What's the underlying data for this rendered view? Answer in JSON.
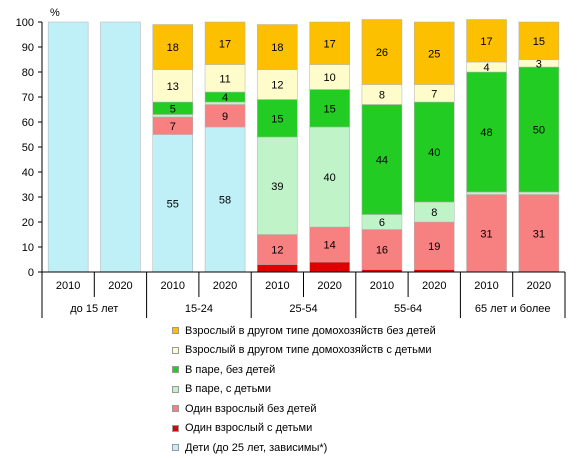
{
  "chart_data": {
    "type": "bar",
    "stacked": true,
    "unit_label": "%",
    "ylim": [
      0,
      100
    ],
    "yticks": [
      0,
      10,
      20,
      30,
      40,
      50,
      60,
      70,
      80,
      90,
      100
    ],
    "grid": false,
    "legend_position": "bottom",
    "groups": [
      {
        "label": "до 15 лет",
        "years": [
          "2010",
          "2020"
        ]
      },
      {
        "label": "15-24",
        "years": [
          "2010",
          "2020"
        ]
      },
      {
        "label": "25-54",
        "years": [
          "2010",
          "2020"
        ]
      },
      {
        "label": "55-64",
        "years": [
          "2010",
          "2020"
        ]
      },
      {
        "label": "65 лет и более",
        "years": [
          "2010",
          "2020"
        ]
      }
    ],
    "categories": [
      "до 15 лет 2010",
      "до 15 лет 2020",
      "15-24 2010",
      "15-24 2020",
      "25-54 2010",
      "25-54 2020",
      "55-64 2010",
      "55-64 2020",
      "65 лет и более 2010",
      "65 лет и более 2020"
    ],
    "series": [
      {
        "name": "Дети (до 25 лет, зависимы*)",
        "color": "#bff0f8",
        "values": [
          100,
          100,
          55,
          58,
          0,
          0,
          0,
          0,
          0,
          0
        ],
        "labels": [
          null,
          null,
          "55",
          "58",
          null,
          null,
          null,
          null,
          null,
          null
        ]
      },
      {
        "name": "Один взрослый с детьми",
        "color": "#e00000",
        "values": [
          0,
          0,
          0,
          0,
          3,
          4,
          1,
          1,
          0,
          0
        ],
        "labels": [
          null,
          null,
          null,
          null,
          null,
          null,
          null,
          null,
          null,
          null
        ]
      },
      {
        "name": "Один взрослый без детей",
        "color": "#f78080",
        "values": [
          0,
          0,
          7,
          9,
          12,
          14,
          16,
          19,
          31,
          31
        ],
        "labels": [
          null,
          null,
          "7",
          "9",
          "12",
          "14",
          "16",
          "19",
          "31",
          "31"
        ]
      },
      {
        "name": "В паре, с детьми",
        "color": "#c0f4c8",
        "values": [
          0,
          0,
          1,
          1,
          39,
          40,
          6,
          8,
          1,
          1
        ],
        "labels": [
          null,
          null,
          null,
          null,
          "39",
          "40",
          "6",
          "8",
          null,
          null
        ]
      },
      {
        "name": "В паре, без детей",
        "color": "#22cc22",
        "values": [
          0,
          0,
          5,
          4,
          15,
          15,
          44,
          40,
          48,
          50
        ],
        "labels": [
          null,
          null,
          "5",
          "4",
          "15",
          "15",
          "44",
          "40",
          "48",
          "50"
        ]
      },
      {
        "name": "Взрослый в другом типе домохозяйств с детьми",
        "color": "#fffccc",
        "values": [
          0,
          0,
          13,
          11,
          12,
          10,
          8,
          7,
          4,
          3
        ],
        "labels": [
          null,
          null,
          "13",
          "11",
          "12",
          "10",
          "8",
          "7",
          "4",
          "3"
        ]
      },
      {
        "name": "Взрослый в другом типе домохозяйств без детей",
        "color": "#fcc000",
        "values": [
          0,
          0,
          18,
          17,
          18,
          17,
          26,
          25,
          17,
          15
        ],
        "labels": [
          null,
          null,
          "18",
          "17",
          "18",
          "17",
          "26",
          "25",
          "17",
          "15"
        ]
      }
    ]
  }
}
